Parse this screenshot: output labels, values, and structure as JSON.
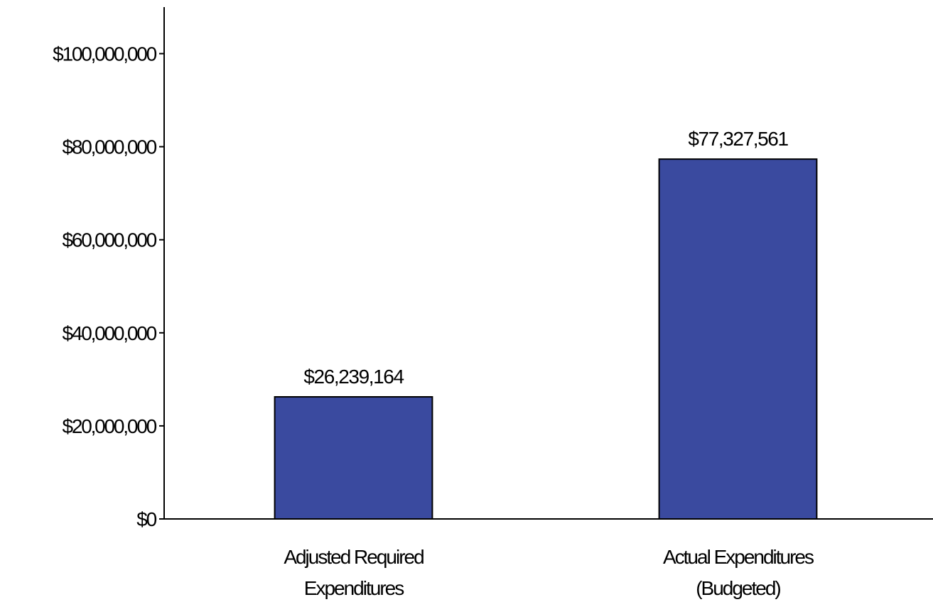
{
  "chart_data": {
    "type": "bar",
    "categories": [
      [
        "Adjusted Required",
        "Expenditures"
      ],
      [
        "Actual Expenditures",
        "(Budgeted)"
      ]
    ],
    "values": [
      26239164,
      77327561
    ],
    "data_labels": [
      "$26,239,164",
      "$77,327,561"
    ],
    "y_ticks": [
      0,
      20000000,
      40000000,
      60000000,
      80000000,
      100000000
    ],
    "y_tick_labels": [
      "$0",
      "$20,000,000",
      "$40,000,000",
      "$60,000,000",
      "$80,000,000",
      "$100,000,000"
    ],
    "ylim": [
      0,
      110000000
    ],
    "bar_color": "#3A4A9F",
    "grid": false,
    "legend": "none",
    "title": "",
    "xlabel": "",
    "ylabel": ""
  }
}
